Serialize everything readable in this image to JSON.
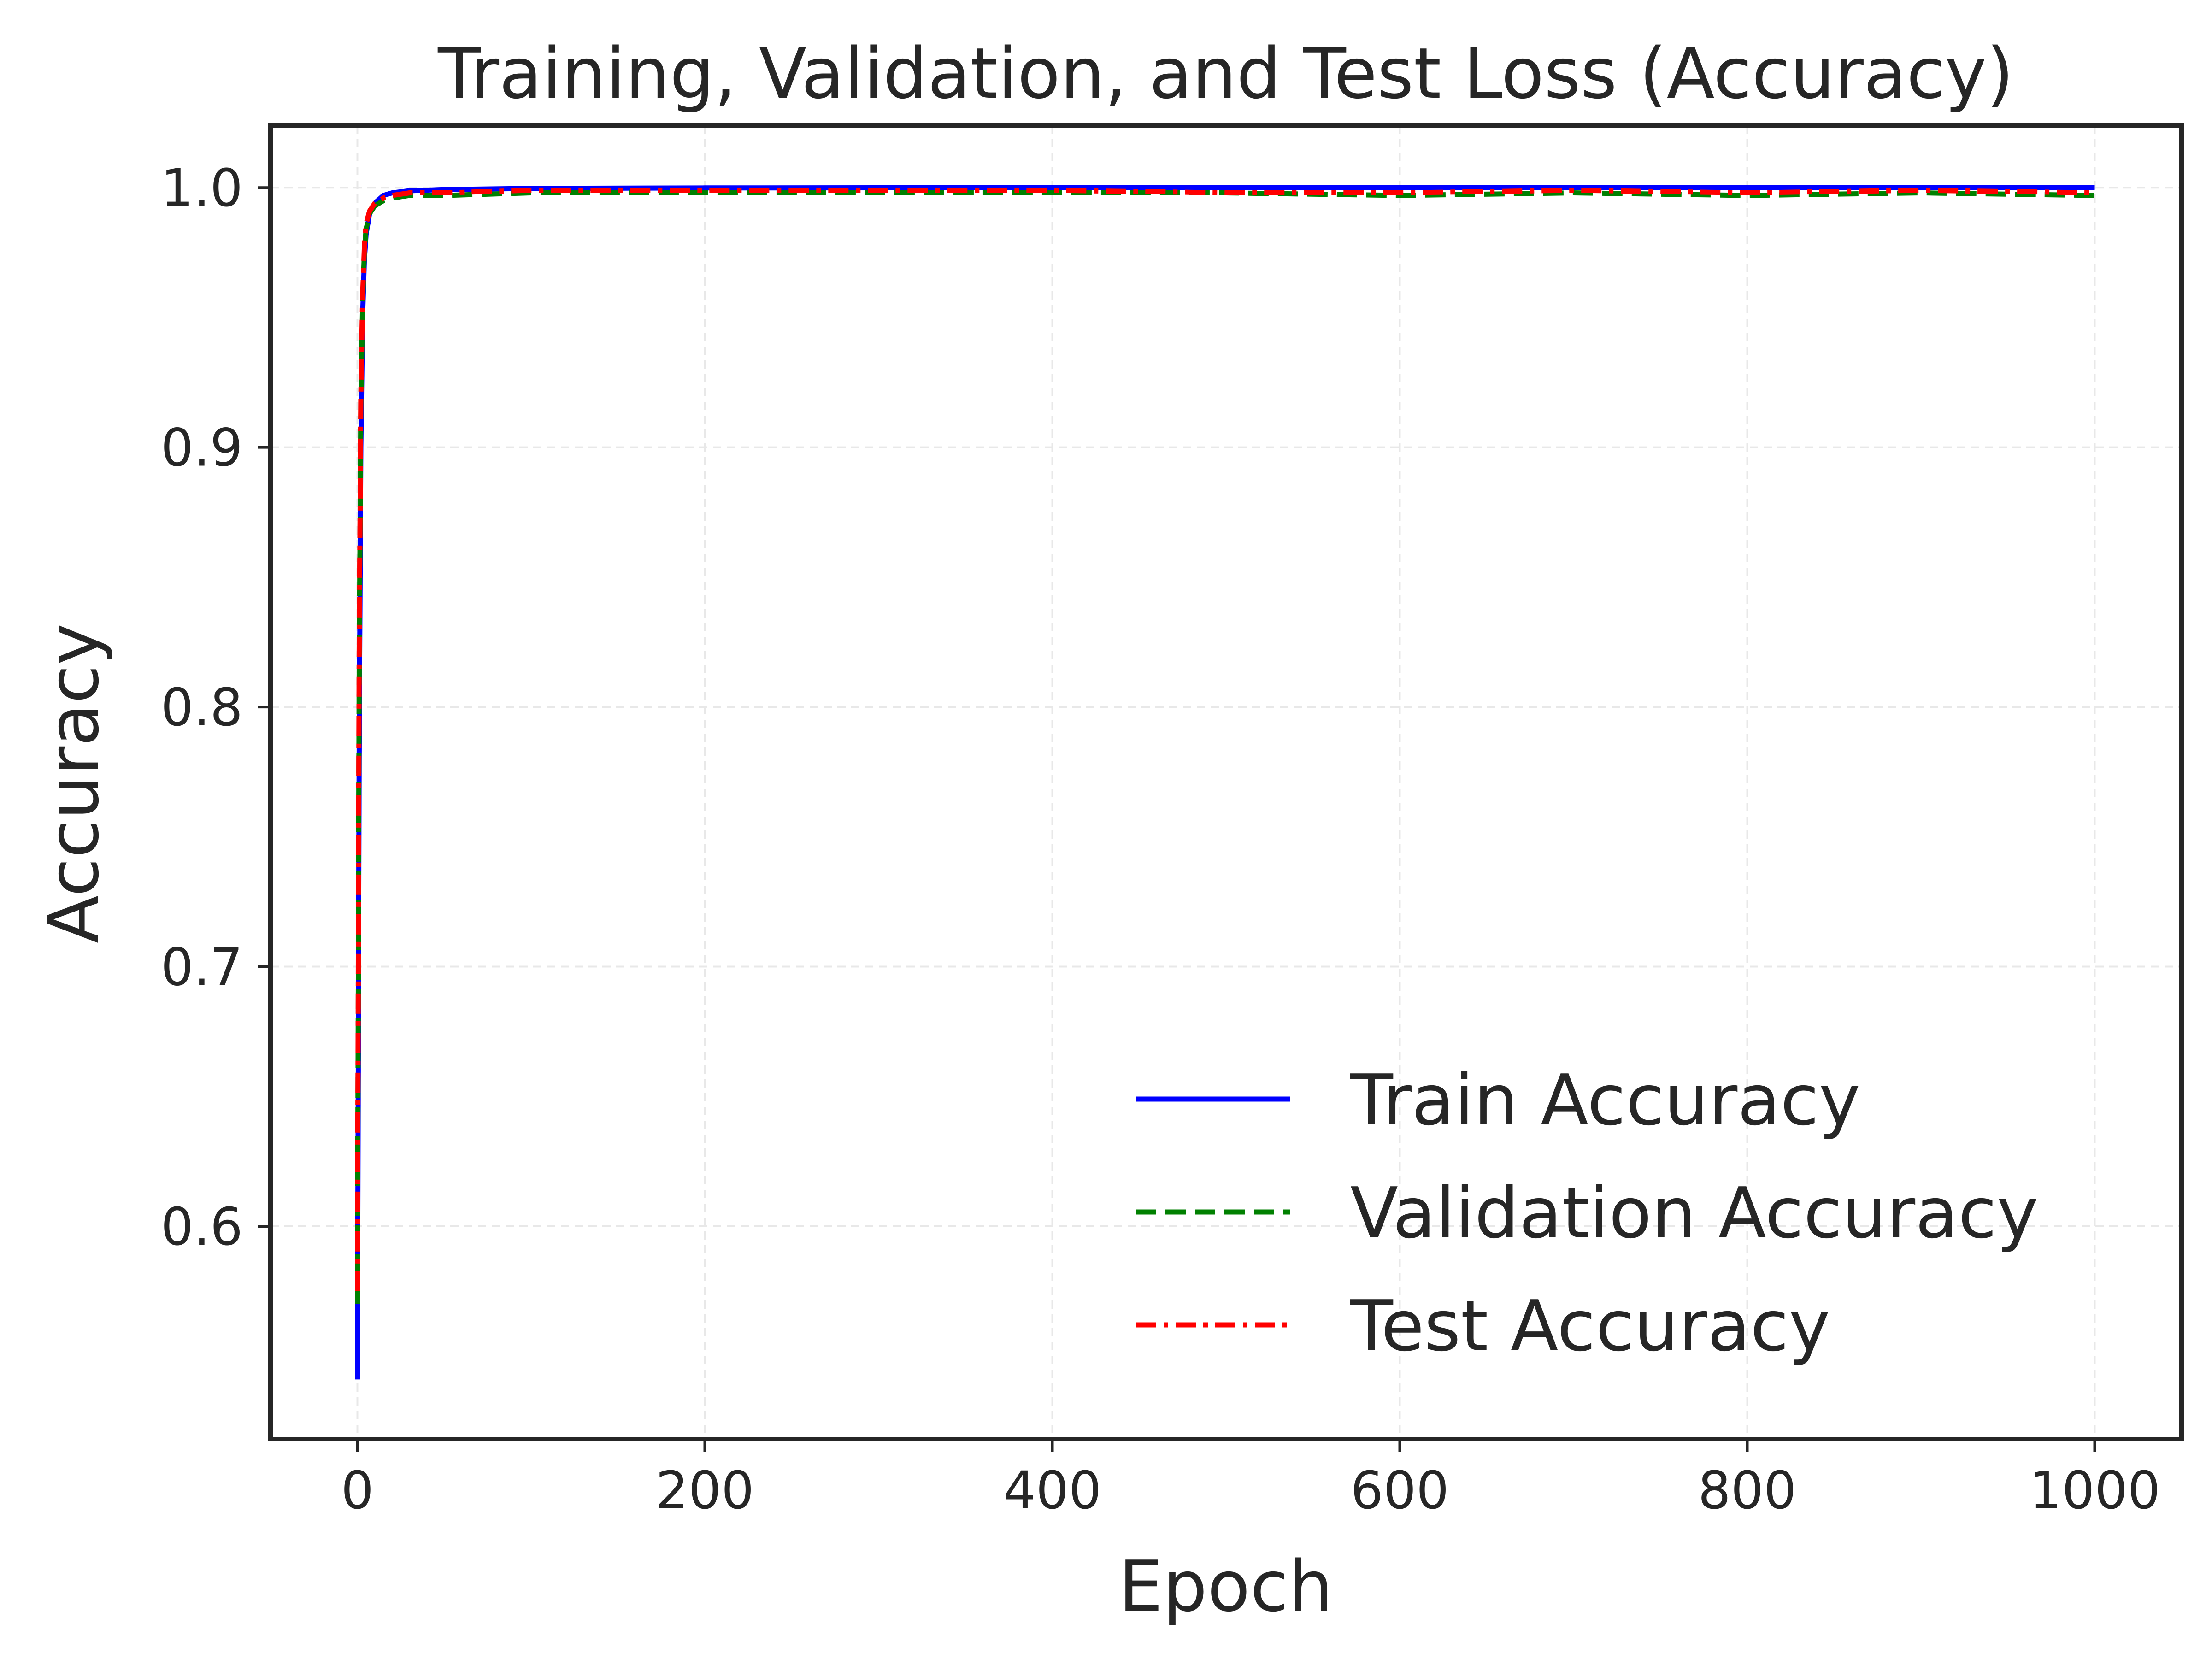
{
  "chart_data": {
    "type": "line",
    "title": "Training, Validation, and Test Loss (Accuracy)",
    "xlabel": "Epoch",
    "ylabel": "Accuracy",
    "xlim": [
      -50,
      1050
    ],
    "ylim": [
      0.518,
      1.024
    ],
    "xticks": [
      0,
      200,
      400,
      600,
      800,
      1000
    ],
    "xtick_labels": [
      "0",
      "200",
      "400",
      "600",
      "800",
      "1000"
    ],
    "yticks": [
      0.6,
      0.7,
      0.8,
      0.9,
      1.0
    ],
    "ytick_labels": [
      "0.6",
      "0.7",
      "0.8",
      "0.9",
      "1.0"
    ],
    "grid": true,
    "legend_position": "lower-right",
    "series": [
      {
        "name": "Train Accuracy",
        "color": "#0000ff",
        "style": "solid",
        "x": [
          0,
          1,
          2,
          3,
          4,
          5,
          7,
          10,
          15,
          20,
          30,
          50,
          100,
          200,
          400,
          600,
          800,
          1000
        ],
        "y": [
          0.541,
          0.78,
          0.9,
          0.95,
          0.972,
          0.982,
          0.99,
          0.994,
          0.997,
          0.998,
          0.9988,
          0.9993,
          0.9997,
          0.9999,
          1.0,
          1.0,
          1.0,
          1.0
        ]
      },
      {
        "name": "Validation Accuracy",
        "color": "#008000",
        "style": "dashed",
        "x": [
          0,
          1,
          2,
          3,
          4,
          5,
          7,
          10,
          15,
          20,
          30,
          50,
          100,
          200,
          300,
          400,
          500,
          600,
          700,
          800,
          900,
          1000
        ],
        "y": [
          0.57,
          0.81,
          0.915,
          0.955,
          0.975,
          0.984,
          0.99,
          0.993,
          0.995,
          0.996,
          0.997,
          0.997,
          0.998,
          0.998,
          0.998,
          0.998,
          0.998,
          0.997,
          0.998,
          0.997,
          0.998,
          0.997
        ]
      },
      {
        "name": "Test Accuracy",
        "color": "#ff0000",
        "style": "dashdot",
        "x": [
          0,
          1,
          2,
          3,
          4,
          5,
          7,
          10,
          15,
          20,
          30,
          50,
          100,
          200,
          300,
          400,
          500,
          600,
          700,
          800,
          900,
          1000
        ],
        "y": [
          0.575,
          0.82,
          0.92,
          0.958,
          0.977,
          0.986,
          0.991,
          0.994,
          0.996,
          0.997,
          0.998,
          0.998,
          0.999,
          0.999,
          0.999,
          0.999,
          0.998,
          0.998,
          0.999,
          0.998,
          0.999,
          0.998
        ]
      }
    ]
  }
}
